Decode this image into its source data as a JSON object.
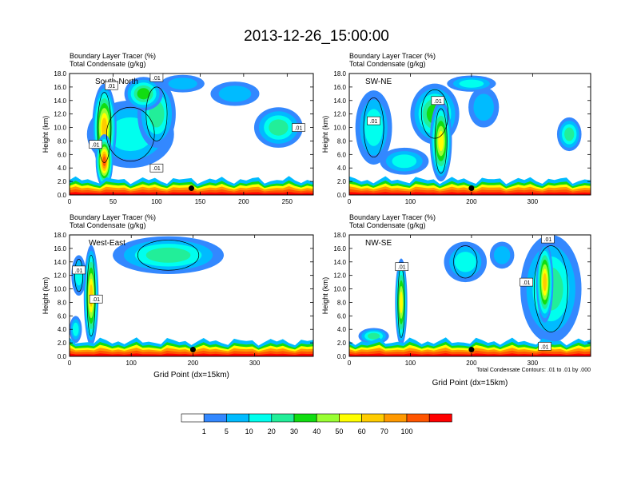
{
  "main_title": "2013-12-26_15:00:00",
  "chart_data": [
    {
      "type": "heatmap",
      "title_line1": "Boundary Layer Tracer    (%)",
      "title_line2": "Total Condensate    (g/kg)",
      "section_label": "South-North",
      "ylabel": "Height (km)",
      "xlabel": "",
      "xlim": [
        0,
        280
      ],
      "ylim": [
        0,
        18
      ],
      "xticks": [
        0,
        50,
        100,
        150,
        200,
        250
      ],
      "yticks": [
        "0.0",
        "2.0",
        "4.0",
        "6.0",
        "8.0",
        "10.0",
        "12.0",
        "14.0",
        "16.0",
        "18.0"
      ],
      "contour_labels": [
        {
          "text": ".01",
          "x": 48,
          "y": 16.2
        },
        {
          "text": ".01",
          "x": 100,
          "y": 17.4
        },
        {
          "text": ".01",
          "x": 30,
          "y": 7.5
        },
        {
          "text": ".01",
          "x": 100,
          "y": 4.0
        },
        {
          "text": ".01",
          "x": 263,
          "y": 10.0
        }
      ],
      "marker": {
        "x": 140,
        "y": 1.0
      }
    },
    {
      "type": "heatmap",
      "title_line1": "Boundary Layer Tracer    (%)",
      "title_line2": "Total Condensate    (g/kg)",
      "section_label": "SW-NE",
      "ylabel": "Height (km)",
      "xlabel": "",
      "xlim": [
        0,
        395
      ],
      "ylim": [
        0,
        18
      ],
      "xticks": [
        0,
        100,
        200,
        300
      ],
      "yticks": [
        "0.0",
        "2.0",
        "4.0",
        "6.0",
        "8.0",
        "10.0",
        "12.0",
        "14.0",
        "16.0",
        "18.0"
      ],
      "contour_labels": [
        {
          "text": ".01",
          "x": 145,
          "y": 14.0
        },
        {
          "text": ".01",
          "x": 40,
          "y": 11.0
        }
      ],
      "marker": {
        "x": 200,
        "y": 1.0
      }
    },
    {
      "type": "heatmap",
      "title_line1": "Boundary Layer Tracer    (%)",
      "title_line2": "Total Condensate    (g/kg)",
      "section_label": "West-East",
      "ylabel": "Height (km)",
      "xlabel": "Grid Point (dx=15km)",
      "xlim": [
        0,
        395
      ],
      "ylim": [
        0,
        18
      ],
      "xticks": [
        0,
        100,
        200,
        300
      ],
      "yticks": [
        "0.0",
        "2.0",
        "4.0",
        "6.0",
        "8.0",
        "10.0",
        "12.0",
        "14.0",
        "16.0",
        "18.0"
      ],
      "contour_labels": [
        {
          "text": ".01",
          "x": 15,
          "y": 12.8
        },
        {
          "text": ".01",
          "x": 43,
          "y": 8.5
        }
      ],
      "marker": {
        "x": 200,
        "y": 1.0
      }
    },
    {
      "type": "heatmap",
      "title_line1": "Boundary Layer Tracer    (%)",
      "title_line2": "Total Condensate    (g/kg)",
      "section_label": "NW-SE",
      "ylabel": "Height (km)",
      "xlabel": "Grid Point (dx=15km)",
      "xlim": [
        0,
        395
      ],
      "ylim": [
        0,
        18
      ],
      "xticks": [
        0,
        100,
        200,
        300
      ],
      "yticks": [
        "0.0",
        "2.0",
        "4.0",
        "6.0",
        "8.0",
        "10.0",
        "12.0",
        "14.0",
        "16.0",
        "18.0"
      ],
      "contour_labels": [
        {
          "text": ".01",
          "x": 86,
          "y": 13.3
        },
        {
          "text": ".01",
          "x": 325,
          "y": 17.4
        },
        {
          "text": ".01",
          "x": 290,
          "y": 11.0
        },
        {
          "text": ".01",
          "x": 320,
          "y": 1.5
        }
      ],
      "marker": {
        "x": 200,
        "y": 1.0
      },
      "footnote": "Total Condensate Contours: .01 to .01 by .000"
    }
  ],
  "colorbar": {
    "labels": [
      "1",
      "5",
      "10",
      "20",
      "30",
      "40",
      "50",
      "60",
      "70",
      "100"
    ],
    "colors": [
      "#ffffff",
      "#3388ff",
      "#00bbff",
      "#00ffee",
      "#22ee99",
      "#11dd11",
      "#99ff33",
      "#ffff00",
      "#ffcc00",
      "#ff9900",
      "#ff5500",
      "#ff0000"
    ]
  },
  "colors": {
    "ground": "#ff2200",
    "contour": "#000000",
    "marker": "#000000"
  }
}
